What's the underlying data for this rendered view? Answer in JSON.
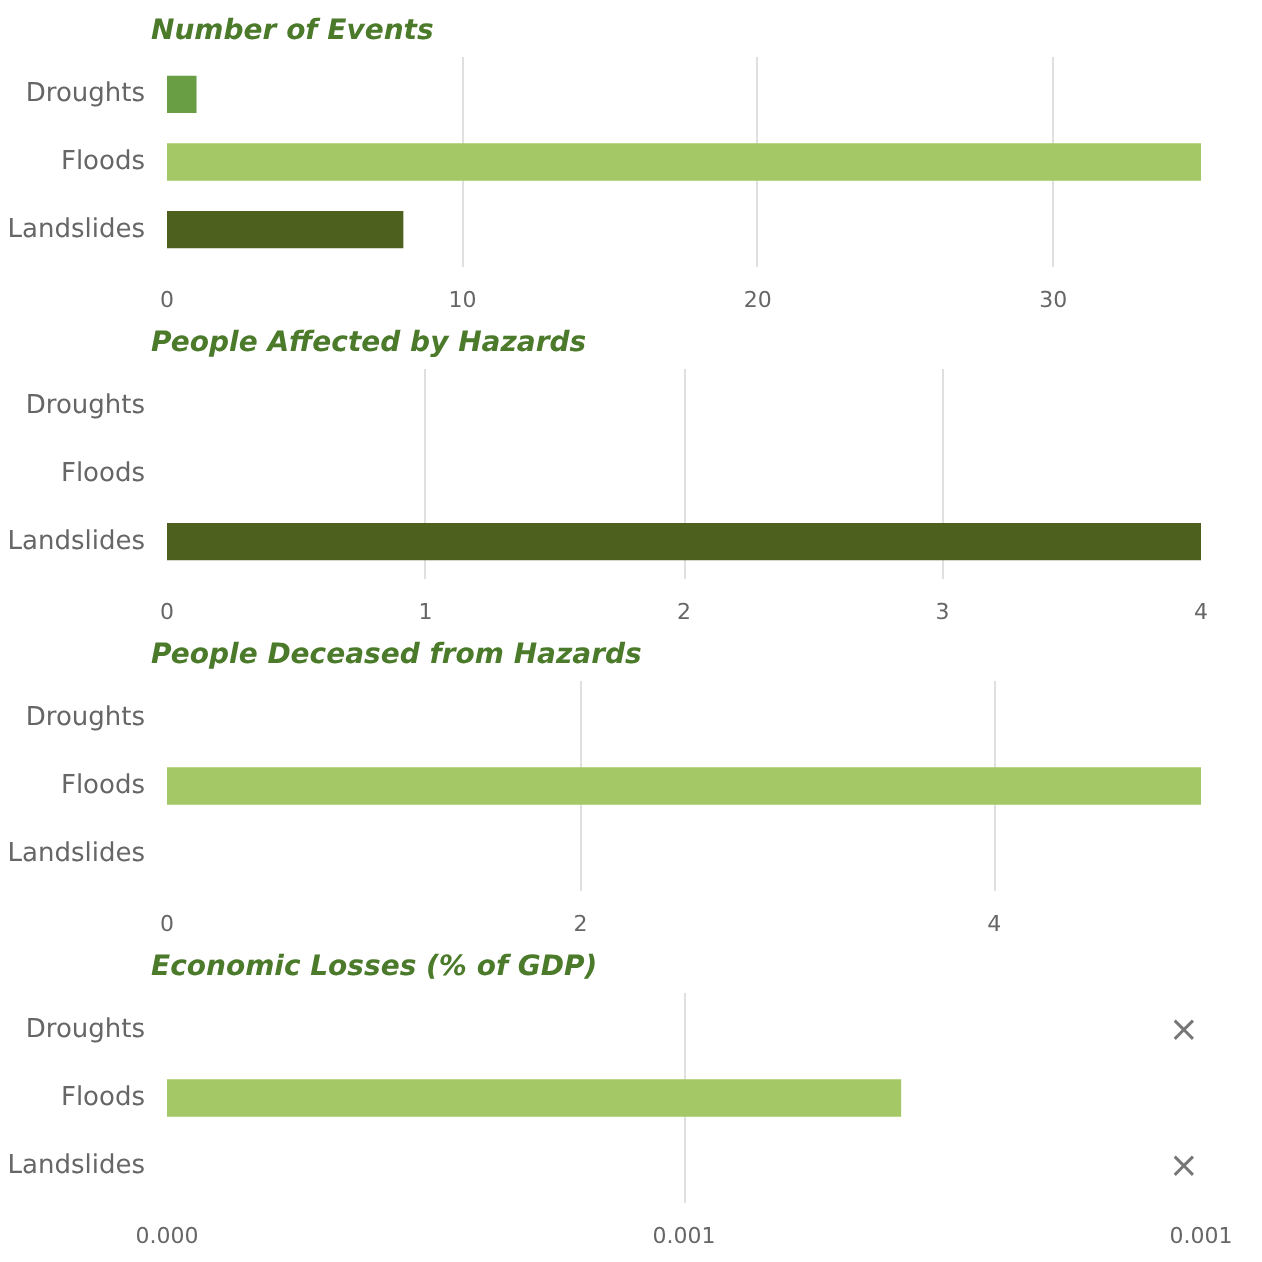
{
  "chart_data": [
    {
      "type": "bar",
      "orientation": "horizontal",
      "title": "Number of Events",
      "categories": [
        "Droughts",
        "Floods",
        "Landslides"
      ],
      "values": [
        1,
        35,
        8
      ],
      "colors": [
        "#6a9e45",
        "#a3c865",
        "#4d601e"
      ],
      "xlim": [
        0,
        35
      ],
      "xticks": [
        0,
        10,
        20,
        30
      ],
      "grid": "x"
    },
    {
      "type": "bar",
      "orientation": "horizontal",
      "title": "People Affected by Hazards",
      "categories": [
        "Droughts",
        "Floods",
        "Landslides"
      ],
      "values": [
        0,
        0,
        4
      ],
      "colors": [
        "#6a9e45",
        "#a3c865",
        "#4d601e"
      ],
      "xlim": [
        0,
        4
      ],
      "xticks": [
        0,
        1,
        2,
        3,
        4
      ],
      "grid": "x"
    },
    {
      "type": "bar",
      "orientation": "horizontal",
      "title": "People Deceased from Hazards",
      "categories": [
        "Droughts",
        "Floods",
        "Landslides"
      ],
      "values": [
        0,
        5,
        0
      ],
      "colors": [
        "#6a9e45",
        "#a3c865",
        "#4d601e"
      ],
      "xlim": [
        0,
        5
      ],
      "xticks": [
        0,
        2,
        4
      ],
      "grid": "x"
    },
    {
      "type": "bar",
      "orientation": "horizontal",
      "title": "Economic Losses (% of GDP)",
      "categories": [
        "Droughts",
        "Floods",
        "Landslides"
      ],
      "values": [
        null,
        0.00071,
        null
      ],
      "colors": [
        "#6a9e45",
        "#a3c865",
        "#4d601e"
      ],
      "xlim": [
        0,
        0.001
      ],
      "xticks": [
        {
          "value": 0,
          "label": "0.000"
        },
        {
          "value": 0.0005,
          "label": "0.001"
        },
        {
          "value": 0.001,
          "label": "0.001"
        }
      ],
      "grid": "x",
      "annotations": [
        "×",
        "×"
      ]
    }
  ]
}
